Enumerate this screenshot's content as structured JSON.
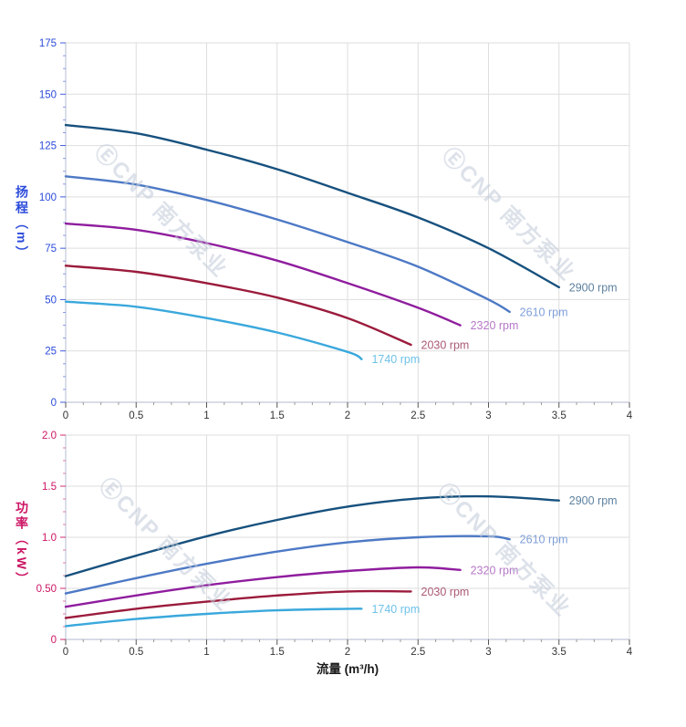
{
  "watermark": {
    "text": "ⒺCNP 南方泵业"
  },
  "chart_data": [
    {
      "type": "line",
      "title": "",
      "xlabel": "",
      "ylabel": "扬程（m）",
      "xlim": [
        0,
        4
      ],
      "ylim": [
        0,
        175
      ],
      "grid": true,
      "legend_position": "curve-end-labels",
      "axis_color": "#2b4bdb",
      "xticks": [
        0,
        0.5,
        1,
        1.5,
        2,
        2.5,
        3,
        3.5,
        4
      ],
      "xtick_labels": [
        "0",
        "0.5",
        "1",
        "1.5",
        "2",
        "2.5",
        "3",
        "3.5",
        "4"
      ],
      "yticks": [
        0,
        25,
        50,
        75,
        100,
        125,
        150,
        175
      ],
      "ytick_labels": [
        "0",
        "25",
        "50",
        "75",
        "100",
        "125",
        "150",
        "175"
      ],
      "x_minor_step": 0.125,
      "y_minor_step": 6.25,
      "series": [
        {
          "name": "2900 rpm",
          "color": "#17517e",
          "label_color": "#5d819f",
          "points": [
            [
              0,
              135
            ],
            [
              0.5,
              131
            ],
            [
              1,
              123
            ],
            [
              1.5,
              113.5
            ],
            [
              2,
              102
            ],
            [
              2.5,
              90
            ],
            [
              3,
              75
            ],
            [
              3.5,
              56
            ]
          ]
        },
        {
          "name": "2610 rpm",
          "color": "#4d79c5",
          "label_color": "#7f9fd8",
          "points": [
            [
              0,
              110
            ],
            [
              0.5,
              106
            ],
            [
              1,
              98.5
            ],
            [
              1.5,
              89
            ],
            [
              2,
              78
            ],
            [
              2.5,
              66
            ],
            [
              3,
              50
            ],
            [
              3.15,
              44
            ]
          ]
        },
        {
          "name": "2320 rpm",
          "color": "#8f1d9e",
          "label_color": "#b678c8",
          "points": [
            [
              0,
              87
            ],
            [
              0.5,
              84
            ],
            [
              1,
              77.5
            ],
            [
              1.5,
              69
            ],
            [
              2,
              58
            ],
            [
              2.5,
              46
            ],
            [
              2.8,
              37.5
            ]
          ]
        },
        {
          "name": "2030 rpm",
          "color": "#9b1b3c",
          "label_color": "#aa5a72",
          "points": [
            [
              0,
              66.5
            ],
            [
              0.5,
              63.5
            ],
            [
              1,
              58
            ],
            [
              1.5,
              51
            ],
            [
              2,
              41
            ],
            [
              2.45,
              28
            ]
          ]
        },
        {
          "name": "1740 rpm",
          "color": "#3aa8dc",
          "label_color": "#6fc2e9",
          "points": [
            [
              0,
              49
            ],
            [
              0.5,
              46.5
            ],
            [
              1,
              41
            ],
            [
              1.5,
              34
            ],
            [
              2,
              24.5
            ],
            [
              2.1,
              21
            ]
          ]
        }
      ]
    },
    {
      "type": "line",
      "title": "",
      "xlabel": "流量 (m³/h)",
      "ylabel": "功率（kW）",
      "xlim": [
        0,
        4
      ],
      "ylim": [
        0,
        2
      ],
      "grid": true,
      "legend_position": "curve-end-labels",
      "axis_color": "#cc1463",
      "xticks": [
        0,
        0.5,
        1,
        1.5,
        2,
        2.5,
        3,
        3.5,
        4
      ],
      "xtick_labels": [
        "0",
        "0.5",
        "1",
        "1.5",
        "2",
        "2.5",
        "3",
        "3.5",
        "4"
      ],
      "yticks": [
        0,
        0.5,
        1,
        1.5,
        2
      ],
      "ytick_labels": [
        "0",
        "0.50",
        "1.0",
        "1.5",
        "2.0"
      ],
      "x_minor_step": 0.125,
      "y_minor_step": 0.125,
      "series": [
        {
          "name": "2900 rpm",
          "color": "#17517e",
          "label_color": "#5d819f",
          "points": [
            [
              0,
              0.62
            ],
            [
              0.5,
              0.82
            ],
            [
              1,
              1.01
            ],
            [
              1.5,
              1.17
            ],
            [
              2,
              1.3
            ],
            [
              2.5,
              1.38
            ],
            [
              3,
              1.4
            ],
            [
              3.5,
              1.36
            ]
          ]
        },
        {
          "name": "2610 rpm",
          "color": "#4d79c5",
          "label_color": "#7f9fd8",
          "points": [
            [
              0,
              0.45
            ],
            [
              0.5,
              0.6
            ],
            [
              1,
              0.74
            ],
            [
              1.5,
              0.86
            ],
            [
              2,
              0.95
            ],
            [
              2.5,
              1.0
            ],
            [
              3,
              1.01
            ],
            [
              3.15,
              0.98
            ]
          ]
        },
        {
          "name": "2320 rpm",
          "color": "#8f1d9e",
          "label_color": "#b678c8",
          "points": [
            [
              0,
              0.32
            ],
            [
              0.5,
              0.43
            ],
            [
              1,
              0.53
            ],
            [
              1.5,
              0.61
            ],
            [
              2,
              0.67
            ],
            [
              2.5,
              0.705
            ],
            [
              2.8,
              0.68
            ]
          ]
        },
        {
          "name": "2030 rpm",
          "color": "#9b1b3c",
          "label_color": "#aa5a72",
          "points": [
            [
              0,
              0.21
            ],
            [
              0.5,
              0.3
            ],
            [
              1,
              0.37
            ],
            [
              1.5,
              0.43
            ],
            [
              2,
              0.47
            ],
            [
              2.45,
              0.47
            ]
          ]
        },
        {
          "name": "1740 rpm",
          "color": "#3aa8dc",
          "label_color": "#6fc2e9",
          "points": [
            [
              0,
              0.13
            ],
            [
              0.5,
              0.2
            ],
            [
              1,
              0.25
            ],
            [
              1.5,
              0.285
            ],
            [
              2,
              0.3
            ],
            [
              2.1,
              0.3
            ]
          ]
        }
      ]
    }
  ]
}
